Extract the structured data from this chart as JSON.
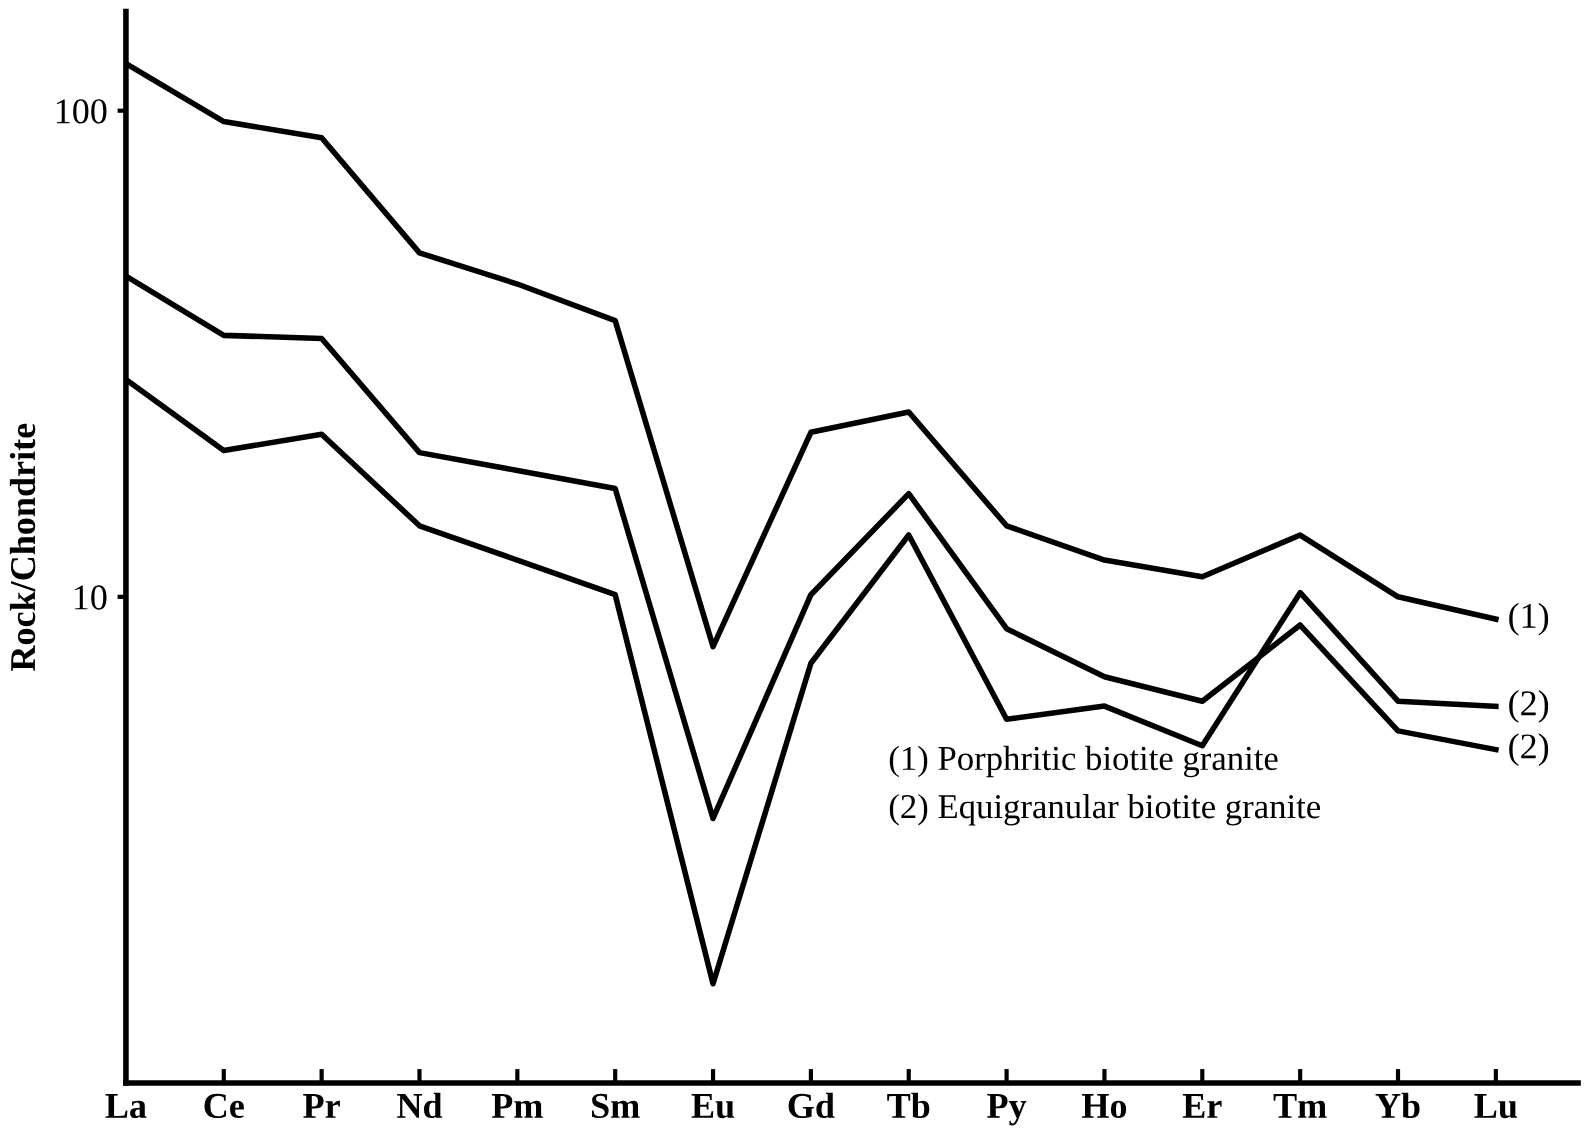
{
  "chart_data": {
    "type": "line",
    "ylabel": "Rock/Chondrite",
    "log": true,
    "ylim": [
      1,
      160
    ],
    "yticks": [
      10,
      100
    ],
    "grid": false,
    "legend": false,
    "marker": "none",
    "line_style": "solid",
    "categories": [
      "La",
      "Ce",
      "Pr",
      "Nd",
      "Pm",
      "Sm",
      "Eu",
      "Gd",
      "Tb",
      "Py",
      "Ho",
      "Er",
      "Tm",
      "Yb",
      "Lu"
    ],
    "series": [
      {
        "name": "(1)",
        "color": "#000000",
        "values": [
          125,
          95,
          88,
          51,
          44,
          37,
          7.9,
          21.8,
          24,
          14,
          11.9,
          11,
          13.4,
          10,
          9.0
        ]
      },
      {
        "name": "(2)",
        "color": "#000000",
        "values": [
          45.7,
          34.5,
          34,
          19.8,
          18.2,
          16.7,
          3.5,
          10.1,
          16.3,
          8.6,
          6.85,
          6.1,
          8.75,
          5.3,
          4.85
        ]
      },
      {
        "name": "(2)",
        "color": "#000000",
        "values": [
          28,
          20,
          21.6,
          14,
          11.9,
          10.1,
          1.6,
          7.3,
          13.4,
          5.6,
          5.96,
          4.94,
          10.2,
          6.1,
          5.95
        ]
      }
    ],
    "annotations": [
      "(1) Porphritic biotite granite",
      "(2) Equigranular biotite granite"
    ]
  }
}
